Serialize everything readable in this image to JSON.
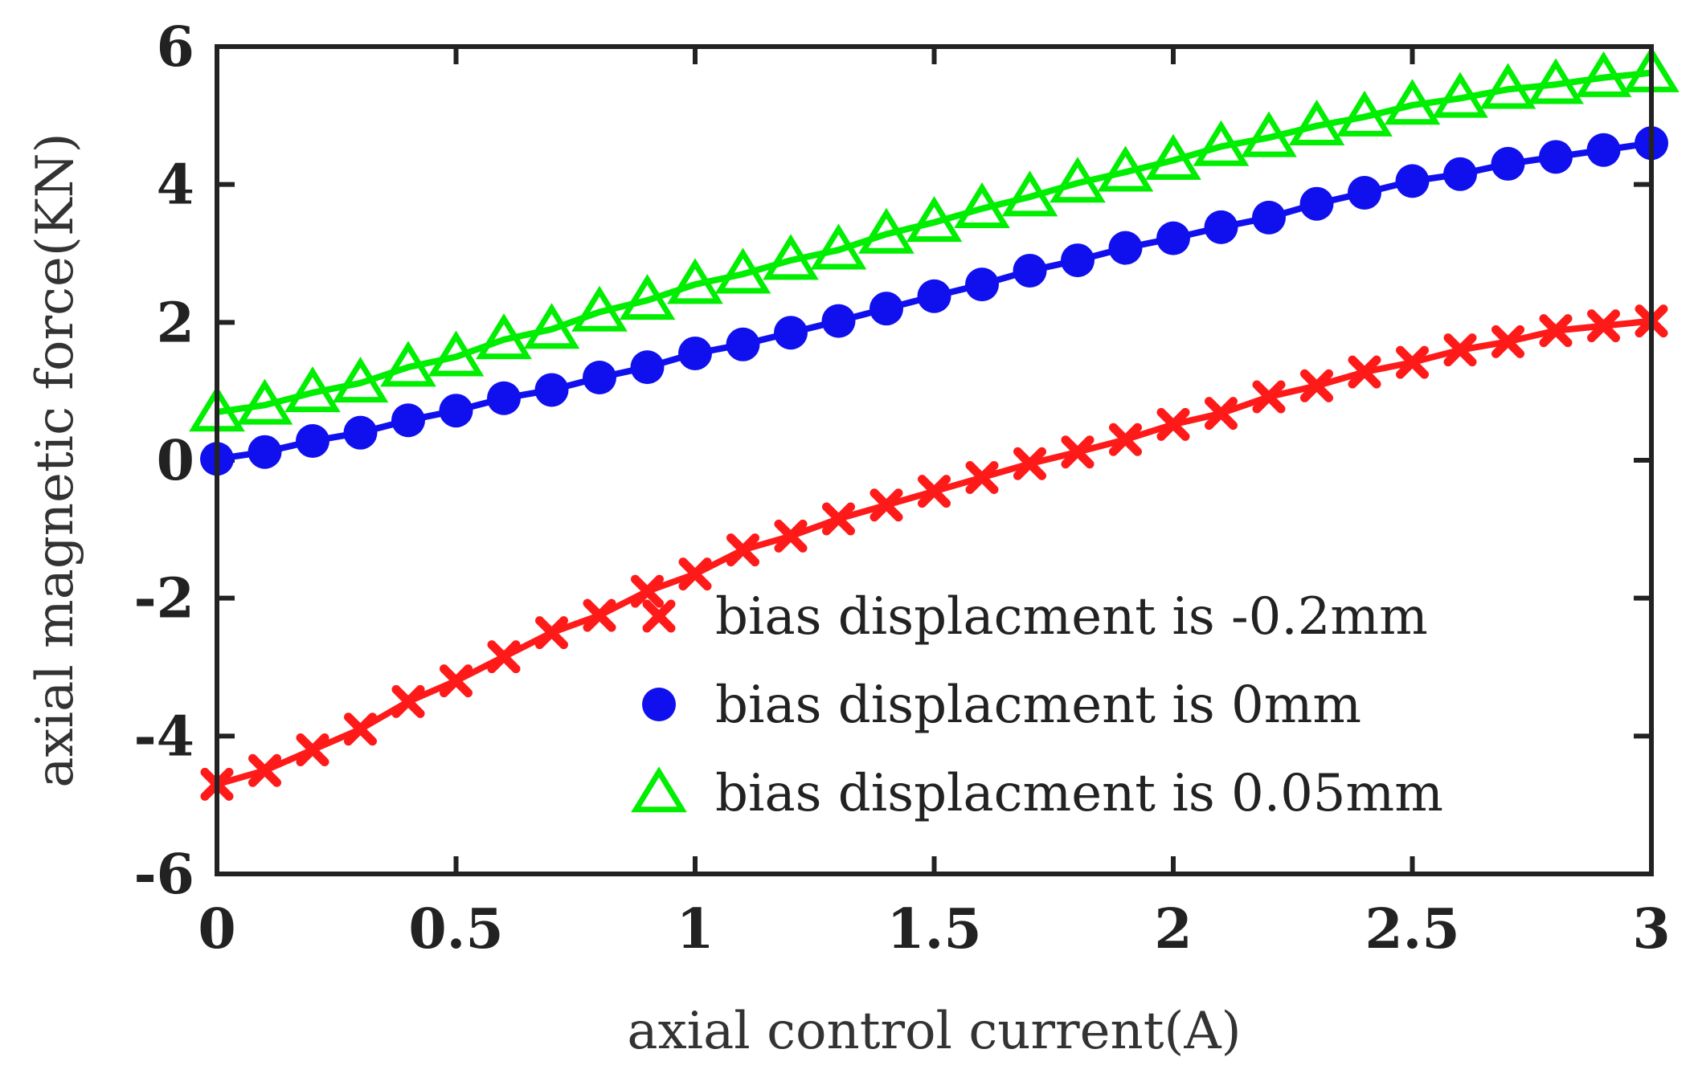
{
  "colors": {
    "series_neg": "#ff1a1a",
    "series_zero": "#1010ee",
    "series_pos": "#00ee00",
    "axis": "#222222"
  },
  "chart_data": {
    "type": "line",
    "title": "",
    "xlabel": "axial control current(A)",
    "ylabel": "axial magnetic force(KN)",
    "xlim": [
      0,
      3
    ],
    "ylim": [
      -6,
      6
    ],
    "xticks": [
      0,
      0.5,
      1,
      1.5,
      2,
      2.5,
      3
    ],
    "xtick_labels": [
      "0",
      "0.5",
      "1",
      "1.5",
      "2",
      "2.5",
      "3"
    ],
    "yticks": [
      -6,
      -4,
      -2,
      0,
      2,
      4,
      6
    ],
    "ytick_labels": [
      "-6",
      "-4",
      "-2",
      "0",
      "2",
      "4",
      "6"
    ],
    "legend_position": "bottom-right",
    "x": [
      0,
      0.1,
      0.2,
      0.3,
      0.4,
      0.5,
      0.6,
      0.7,
      0.8,
      0.9,
      1.0,
      1.1,
      1.2,
      1.3,
      1.4,
      1.5,
      1.6,
      1.7,
      1.8,
      1.9,
      2.0,
      2.1,
      2.2,
      2.3,
      2.4,
      2.5,
      2.6,
      2.7,
      2.8,
      2.9,
      3.0
    ],
    "series": [
      {
        "name": "bias displacment is -0.2mm",
        "marker": "x",
        "color_key": "series_neg",
        "values": [
          -4.7,
          -4.5,
          -4.2,
          -3.9,
          -3.5,
          -3.2,
          -2.85,
          -2.5,
          -2.25,
          -1.9,
          -1.65,
          -1.3,
          -1.1,
          -0.85,
          -0.65,
          -0.45,
          -0.25,
          -0.05,
          0.12,
          0.3,
          0.52,
          0.68,
          0.92,
          1.08,
          1.28,
          1.42,
          1.6,
          1.72,
          1.88,
          1.95,
          2.02
        ]
      },
      {
        "name": "bias displacment is 0mm",
        "marker": "circle",
        "color_key": "series_zero",
        "values": [
          0.02,
          0.12,
          0.28,
          0.4,
          0.58,
          0.72,
          0.9,
          1.02,
          1.2,
          1.35,
          1.55,
          1.68,
          1.85,
          2.02,
          2.2,
          2.38,
          2.55,
          2.75,
          2.9,
          3.08,
          3.22,
          3.38,
          3.52,
          3.72,
          3.88,
          4.05,
          4.15,
          4.3,
          4.4,
          4.5,
          4.6
        ]
      },
      {
        "name": "bias displacment is 0.05mm",
        "marker": "triangle",
        "color_key": "series_pos",
        "values": [
          0.7,
          0.8,
          0.98,
          1.12,
          1.35,
          1.5,
          1.75,
          1.9,
          2.15,
          2.32,
          2.55,
          2.7,
          2.9,
          3.05,
          3.28,
          3.45,
          3.65,
          3.82,
          4.02,
          4.18,
          4.35,
          4.55,
          4.68,
          4.85,
          4.98,
          5.15,
          5.25,
          5.38,
          5.45,
          5.55,
          5.62
        ]
      }
    ]
  }
}
